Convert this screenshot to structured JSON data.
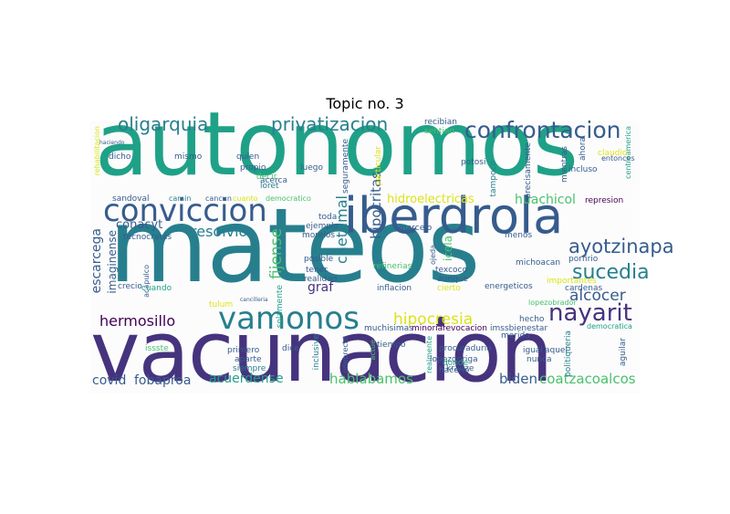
{
  "title": "Topic no. 3",
  "colors": {
    "green": "#1fa187",
    "teal": "#277f8e",
    "blue": "#365c8d",
    "indigo": "#46337e",
    "purple": "#440154",
    "lime": "#a0da39",
    "yellow": "#dce319",
    "mint": "#4ac16d"
  },
  "words": {
    "autonomos": "autonomos",
    "mateos": "mateos",
    "vacunacion": "vacunacion",
    "iberdrola": "iberdrola",
    "conviccion": "conviccion",
    "vamonos": "vamonos",
    "confrontacion": "confrontacion",
    "oligarquia": "oligarquia",
    "privatizacion": "privatizacion",
    "nayarit": "nayarit",
    "sucedia": "sucedia",
    "ayotzinapa": "ayotzinapa",
    "alcocer": "alcocer",
    "hermosillo": "hermosillo",
    "hipocresia": "hipocresia",
    "resolvio": "resolvio",
    "conacyt": "conacyt",
    "escarcega": "escarcega",
    "hipocritas": "hipocritas",
    "chetumal": "chetumal",
    "hidroelectricas": "hidroelectricas",
    "huachicol": "huachicol",
    "acuerdense": "acuerdense",
    "hablabamos": "hablabamos",
    "biden": "biden",
    "coatzacoalcos": "coatzacoalcos",
    "covid": "covid",
    "fobaproa": "fobaproa",
    "fijense": "fijense",
    "imaginense": "imaginense",
    "graf": "graf",
    "icela": "icela",
    "sandoval": "sandoval",
    "camin": "camin",
    "cancun": "cancun",
    "cuanto": "cuanto",
    "democratico": "democratico",
    "dicho": "dicho",
    "mismo": "mismo",
    "quien": "quien",
    "propio": "propio",
    "decir": "decir",
    "loret": "loret",
    "acerca": "acerca",
    "luego": "luego",
    "potosi": "potosi",
    "recibian": "recibian",
    "sentian": "sentian",
    "precisamente": "precisamente",
    "mientras": "mientras",
    "ahora": "ahora",
    "claudio": "claudio",
    "incluso": "incluso",
    "centroamerica": "centroamerica",
    "repres": "represion",
    "tecnocratas": "tecnocratas",
    "cuando": "cuando",
    "marcelo": "marcelo",
    "menos": "menos",
    "michoacan": "michoacan",
    "porfirio": "porfirio",
    "tener": "tener",
    "realidad": "realidad",
    "posible": "posible",
    "texcoco": "texcoco",
    "aunque": "aunque",
    "refinerias": "refinerias",
    "inflacion": "inflacion",
    "cierto": "cierto",
    "energeticos": "energeticos",
    "importantes": "importantes",
    "cardenas": "cardenas",
    "acapulco": "acapulco",
    "crecio": "crecio",
    "tulum": "tulum",
    "issste": "issste",
    "primero": "primero",
    "aparte": "aparte",
    "siempre": "siempre",
    "dice": "dice",
    "inclusive": "inclusive",
    "odebrecht": "odebrecht",
    "actue": "actue",
    "tiempo": "tiempo",
    "muchisimas": "muchisimas",
    "minoria": "minoria",
    "revocacion": "revocacion",
    "hecho": "hecho",
    "imssbienestar": "imssbienestar",
    "lopezobrador": "lopezobrador",
    "merida": "merida",
    "procuraduria": "procuraduria",
    "lopezdoriga": "lopezdoriga",
    "realmente": "realmente",
    "krauze": "krauze",
    "igual": "igual",
    "nunca": "nunca",
    "aquel": "aquel",
    "politiqueria": "politiqueria",
    "aguilar": "aguilar",
    "entonces": "entonces",
    "democratica": "democratica",
    "hacerlo": "hacerlo",
    "donde": "donde",
    "toda": "toda",
    "ejemplo": "ejemplo",
    "morelos": "morelos",
    "solamente": "solamente",
    "seguramente": "seguramente",
    "particular": "particular",
    "tampoco": "tampoco",
    "rehabilitacion": "rehabilitacion",
    "ojeda": "ojeda",
    "haciendo": "haciendo",
    "cancilleria": "cancilleria"
  }
}
